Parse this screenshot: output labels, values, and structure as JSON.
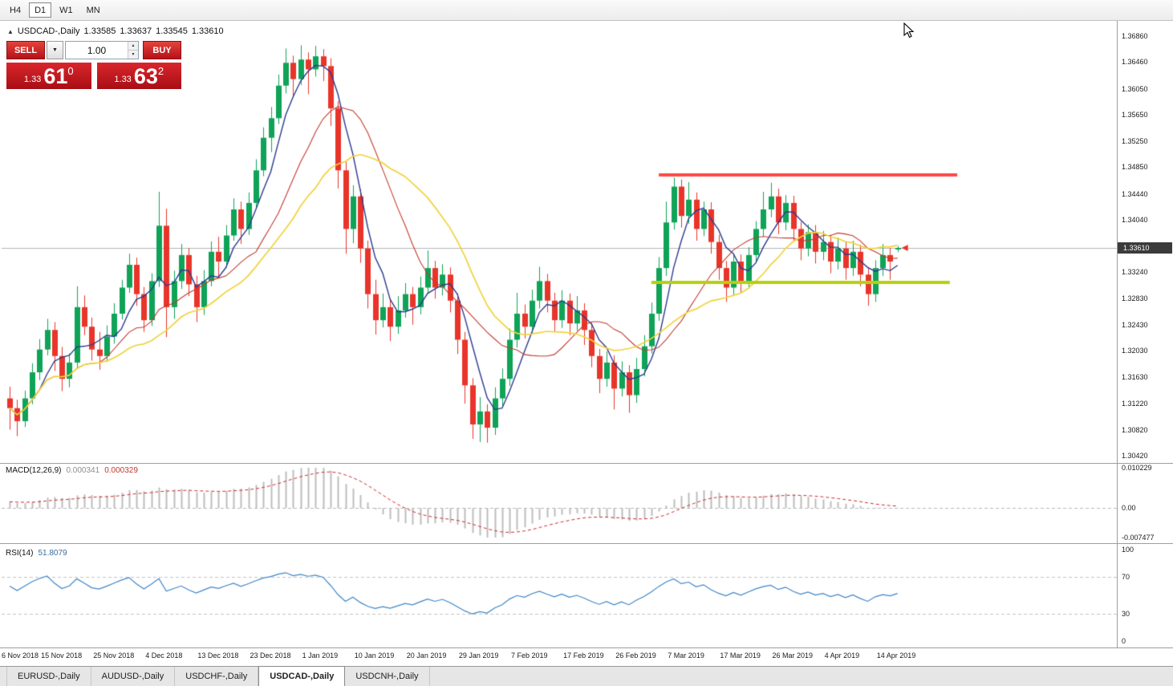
{
  "toolbar": {
    "timeframes": [
      {
        "label": "H4",
        "active": false
      },
      {
        "label": "D1",
        "active": true
      },
      {
        "label": "W1",
        "active": false
      },
      {
        "label": "MN",
        "active": false
      }
    ]
  },
  "chart_header": {
    "symbol": "USDCAD-,Daily",
    "open": "1.33585",
    "high": "1.33637",
    "low": "1.33545",
    "close": "1.33610"
  },
  "trade_panel": {
    "sell_label": "SELL",
    "buy_label": "BUY",
    "volume": "1.00",
    "sell_price": {
      "small": "1.33",
      "big": "61",
      "sup": "0"
    },
    "buy_price": {
      "small": "1.33",
      "big": "63",
      "sup": "2"
    }
  },
  "price_axis": {
    "current": "1.33610"
  },
  "colors": {
    "bull": "#0fa357",
    "bear": "#e8342a",
    "resistance": "#ff4a42",
    "support": "#b5cf12",
    "macd_hist": "#bdbdbd",
    "macd_signal": "#cc2a2a",
    "rsi_line": "#3f85c6",
    "price_line": "#b4b4b4",
    "badge_bg": "#3b3b3b",
    "trade_red": "#d8232e"
  },
  "chart_data": {
    "type": "candlestick",
    "symbol": "USDCAD-,Daily",
    "x_label_step": 7,
    "x_labels": [
      "6 Nov 2018",
      "15 Nov 2018",
      "25 Nov 2018",
      "4 Dec 2018",
      "13 Dec 2018",
      "23 Dec 2018",
      "1 Jan 2019",
      "10 Jan 2019",
      "20 Jan 2019",
      "29 Jan 2019",
      "7 Feb 2019",
      "17 Feb 2019",
      "26 Feb 2019",
      "7 Mar 2019",
      "17 Mar 2019",
      "26 Mar 2019",
      "4 Apr 2019",
      "14 Apr 2019"
    ],
    "y_ticks": [
      "1.36860",
      "1.36460",
      "1.36050",
      "1.35650",
      "1.35250",
      "1.34850",
      "1.34440",
      "1.34040",
      "1.33240",
      "1.32830",
      "1.32430",
      "1.32030",
      "1.31630",
      "1.31220",
      "1.30820",
      "1.30420"
    ],
    "y_range": [
      1.3042,
      1.3686
    ],
    "price_line": 1.3361,
    "resistance": {
      "price": 1.3473,
      "from_index": 87,
      "to_index": 127,
      "color": "#ff4a42"
    },
    "support": {
      "price": 1.3308,
      "from_index": 86,
      "to_index": 126,
      "color": "#b5cf12"
    },
    "ma": [
      {
        "period": 5,
        "color": "#2b3a8f",
        "width": 1.4
      },
      {
        "period": 13,
        "color": "#c23b2e",
        "width": 1.1
      },
      {
        "period": 21,
        "color": "#f0d23c",
        "width": 1.7
      }
    ],
    "macd": {
      "label": "MACD(12,26,9)",
      "value1": "0.000341",
      "value2": "0.000329",
      "fast": 12,
      "slow": 26,
      "signal": 9,
      "range": [
        -0.007477,
        0.010229
      ],
      "y_ticks": [
        "0.010229",
        "0.00",
        "-0.007477"
      ]
    },
    "rsi": {
      "label": "RSI(14)",
      "value": "51.8079",
      "period": 14,
      "levels": [
        70,
        30
      ],
      "y_ticks": [
        "100",
        "70",
        "30",
        "0"
      ],
      "range": [
        0,
        100
      ]
    },
    "candles": [
      [
        1.313,
        1.3148,
        1.3082,
        1.3115
      ],
      [
        1.3115,
        1.3128,
        1.3072,
        1.3095
      ],
      [
        1.3095,
        1.3142,
        1.3086,
        1.313
      ],
      [
        1.313,
        1.3184,
        1.3121,
        1.317
      ],
      [
        1.317,
        1.3221,
        1.3158,
        1.3205
      ],
      [
        1.3205,
        1.3252,
        1.3196,
        1.3235
      ],
      [
        1.3235,
        1.3247,
        1.3172,
        1.3195
      ],
      [
        1.3195,
        1.3209,
        1.3141,
        1.316
      ],
      [
        1.316,
        1.3199,
        1.3147,
        1.3185
      ],
      [
        1.3185,
        1.3302,
        1.3176,
        1.327
      ],
      [
        1.327,
        1.3288,
        1.3227,
        1.324
      ],
      [
        1.324,
        1.3254,
        1.3188,
        1.3205
      ],
      [
        1.3205,
        1.3232,
        1.3174,
        1.3195
      ],
      [
        1.3195,
        1.3242,
        1.3186,
        1.3225
      ],
      [
        1.3225,
        1.3276,
        1.3214,
        1.326
      ],
      [
        1.326,
        1.3312,
        1.3251,
        1.33
      ],
      [
        1.33,
        1.3352,
        1.3292,
        1.3335
      ],
      [
        1.3335,
        1.3346,
        1.3272,
        1.329
      ],
      [
        1.329,
        1.3301,
        1.3232,
        1.325
      ],
      [
        1.325,
        1.3322,
        1.3241,
        1.331
      ],
      [
        1.331,
        1.3447,
        1.3301,
        1.3395
      ],
      [
        1.3395,
        1.3421,
        1.3224,
        1.327
      ],
      [
        1.327,
        1.3326,
        1.3252,
        1.331
      ],
      [
        1.331,
        1.3367,
        1.3298,
        1.335
      ],
      [
        1.335,
        1.3361,
        1.3287,
        1.3305
      ],
      [
        1.3305,
        1.3318,
        1.3247,
        1.327
      ],
      [
        1.327,
        1.3327,
        1.3258,
        1.331
      ],
      [
        1.331,
        1.3371,
        1.3302,
        1.3355
      ],
      [
        1.3355,
        1.3378,
        1.3317,
        1.334
      ],
      [
        1.334,
        1.3396,
        1.3331,
        1.338
      ],
      [
        1.338,
        1.3437,
        1.3372,
        1.342
      ],
      [
        1.342,
        1.3432,
        1.3367,
        1.339
      ],
      [
        1.339,
        1.3446,
        1.3381,
        1.343
      ],
      [
        1.343,
        1.3497,
        1.3422,
        1.348
      ],
      [
        1.348,
        1.3546,
        1.3471,
        1.353
      ],
      [
        1.353,
        1.3577,
        1.3508,
        1.356
      ],
      [
        1.356,
        1.3627,
        1.3551,
        1.361
      ],
      [
        1.361,
        1.3667,
        1.3598,
        1.3645
      ],
      [
        1.3645,
        1.3656,
        1.3592,
        1.362
      ],
      [
        1.362,
        1.3672,
        1.3611,
        1.365
      ],
      [
        1.365,
        1.3661,
        1.3597,
        1.3635
      ],
      [
        1.3635,
        1.3671,
        1.3624,
        1.3655
      ],
      [
        1.3655,
        1.3666,
        1.3617,
        1.364
      ],
      [
        1.364,
        1.3652,
        1.3548,
        1.3575
      ],
      [
        1.3575,
        1.3586,
        1.3452,
        1.348
      ],
      [
        1.348,
        1.3493,
        1.3352,
        1.339
      ],
      [
        1.339,
        1.3457,
        1.3368,
        1.344
      ],
      [
        1.344,
        1.3451,
        1.3338,
        1.336
      ],
      [
        1.336,
        1.3372,
        1.3268,
        1.329
      ],
      [
        1.329,
        1.3312,
        1.3228,
        1.325
      ],
      [
        1.325,
        1.3291,
        1.3239,
        1.327
      ],
      [
        1.327,
        1.3281,
        1.3218,
        1.324
      ],
      [
        1.324,
        1.3287,
        1.3229,
        1.3265
      ],
      [
        1.3265,
        1.3307,
        1.3254,
        1.329
      ],
      [
        1.329,
        1.3301,
        1.3243,
        1.327
      ],
      [
        1.327,
        1.3317,
        1.3259,
        1.33
      ],
      [
        1.33,
        1.3357,
        1.3291,
        1.333
      ],
      [
        1.333,
        1.3341,
        1.3283,
        1.33
      ],
      [
        1.33,
        1.3336,
        1.3288,
        1.332
      ],
      [
        1.332,
        1.3331,
        1.3262,
        1.328
      ],
      [
        1.328,
        1.3291,
        1.3198,
        1.322
      ],
      [
        1.322,
        1.3232,
        1.3122,
        1.315
      ],
      [
        1.315,
        1.3161,
        1.3068,
        1.309
      ],
      [
        1.309,
        1.3132,
        1.3063,
        1.311
      ],
      [
        1.311,
        1.3121,
        1.3062,
        1.3085
      ],
      [
        1.3085,
        1.3147,
        1.3074,
        1.313
      ],
      [
        1.313,
        1.3176,
        1.3118,
        1.316
      ],
      [
        1.316,
        1.3237,
        1.3149,
        1.322
      ],
      [
        1.322,
        1.3292,
        1.3208,
        1.326
      ],
      [
        1.326,
        1.3274,
        1.3222,
        1.324
      ],
      [
        1.324,
        1.3297,
        1.3229,
        1.328
      ],
      [
        1.328,
        1.3332,
        1.3268,
        1.331
      ],
      [
        1.331,
        1.3321,
        1.3262,
        1.328
      ],
      [
        1.328,
        1.3292,
        1.3233,
        1.325
      ],
      [
        1.325,
        1.3296,
        1.3238,
        1.328
      ],
      [
        1.328,
        1.3291,
        1.3227,
        1.3245
      ],
      [
        1.3245,
        1.3287,
        1.3234,
        1.3265
      ],
      [
        1.3265,
        1.3276,
        1.3212,
        1.3235
      ],
      [
        1.3235,
        1.3246,
        1.3178,
        1.3195
      ],
      [
        1.3195,
        1.3206,
        1.3138,
        1.316
      ],
      [
        1.316,
        1.3202,
        1.3148,
        1.3185
      ],
      [
        1.3185,
        1.3196,
        1.3113,
        1.3145
      ],
      [
        1.3145,
        1.3187,
        1.3133,
        1.317
      ],
      [
        1.317,
        1.3181,
        1.3108,
        1.3135
      ],
      [
        1.3135,
        1.3192,
        1.3123,
        1.3175
      ],
      [
        1.3175,
        1.3227,
        1.3164,
        1.321
      ],
      [
        1.321,
        1.3277,
        1.3199,
        1.326
      ],
      [
        1.326,
        1.3347,
        1.3249,
        1.333
      ],
      [
        1.333,
        1.3432,
        1.3318,
        1.34
      ],
      [
        1.34,
        1.3469,
        1.3389,
        1.3455
      ],
      [
        1.3455,
        1.3466,
        1.3392,
        1.341
      ],
      [
        1.341,
        1.3462,
        1.3398,
        1.3435
      ],
      [
        1.3435,
        1.3446,
        1.3372,
        1.339
      ],
      [
        1.339,
        1.3432,
        1.3379,
        1.342
      ],
      [
        1.342,
        1.3431,
        1.3352,
        1.337
      ],
      [
        1.337,
        1.3381,
        1.3312,
        1.333
      ],
      [
        1.333,
        1.3341,
        1.3278,
        1.33
      ],
      [
        1.33,
        1.3352,
        1.3289,
        1.334
      ],
      [
        1.334,
        1.3351,
        1.3292,
        1.331
      ],
      [
        1.331,
        1.3362,
        1.3299,
        1.335
      ],
      [
        1.335,
        1.3402,
        1.3338,
        1.339
      ],
      [
        1.339,
        1.3447,
        1.3379,
        1.342
      ],
      [
        1.342,
        1.3461,
        1.3408,
        1.344
      ],
      [
        1.344,
        1.3452,
        1.3382,
        1.34
      ],
      [
        1.34,
        1.3442,
        1.3388,
        1.343
      ],
      [
        1.343,
        1.3441,
        1.3372,
        1.339
      ],
      [
        1.339,
        1.3401,
        1.3342,
        1.336
      ],
      [
        1.336,
        1.3397,
        1.3348,
        1.3385
      ],
      [
        1.3385,
        1.3396,
        1.3337,
        1.3355
      ],
      [
        1.3355,
        1.3387,
        1.3342,
        1.337
      ],
      [
        1.337,
        1.3381,
        1.3322,
        1.334
      ],
      [
        1.334,
        1.3377,
        1.3328,
        1.336
      ],
      [
        1.336,
        1.3371,
        1.3312,
        1.333
      ],
      [
        1.333,
        1.3372,
        1.3318,
        1.3355
      ],
      [
        1.3355,
        1.3366,
        1.3302,
        1.332
      ],
      [
        1.332,
        1.3331,
        1.3272,
        1.329
      ],
      [
        1.329,
        1.3342,
        1.3278,
        1.333
      ],
      [
        1.333,
        1.3367,
        1.3318,
        1.335
      ],
      [
        1.335,
        1.3361,
        1.3312,
        1.334
      ],
      [
        1.33585,
        1.33637,
        1.33545,
        1.3361
      ]
    ]
  },
  "bottom_tabs": [
    {
      "label": "EURUSD-,Daily",
      "active": false
    },
    {
      "label": "AUDUSD-,Daily",
      "active": false
    },
    {
      "label": "USDCHF-,Daily",
      "active": false
    },
    {
      "label": "USDCAD-,Daily",
      "active": true
    },
    {
      "label": "USDCNH-,Daily",
      "active": false
    }
  ]
}
